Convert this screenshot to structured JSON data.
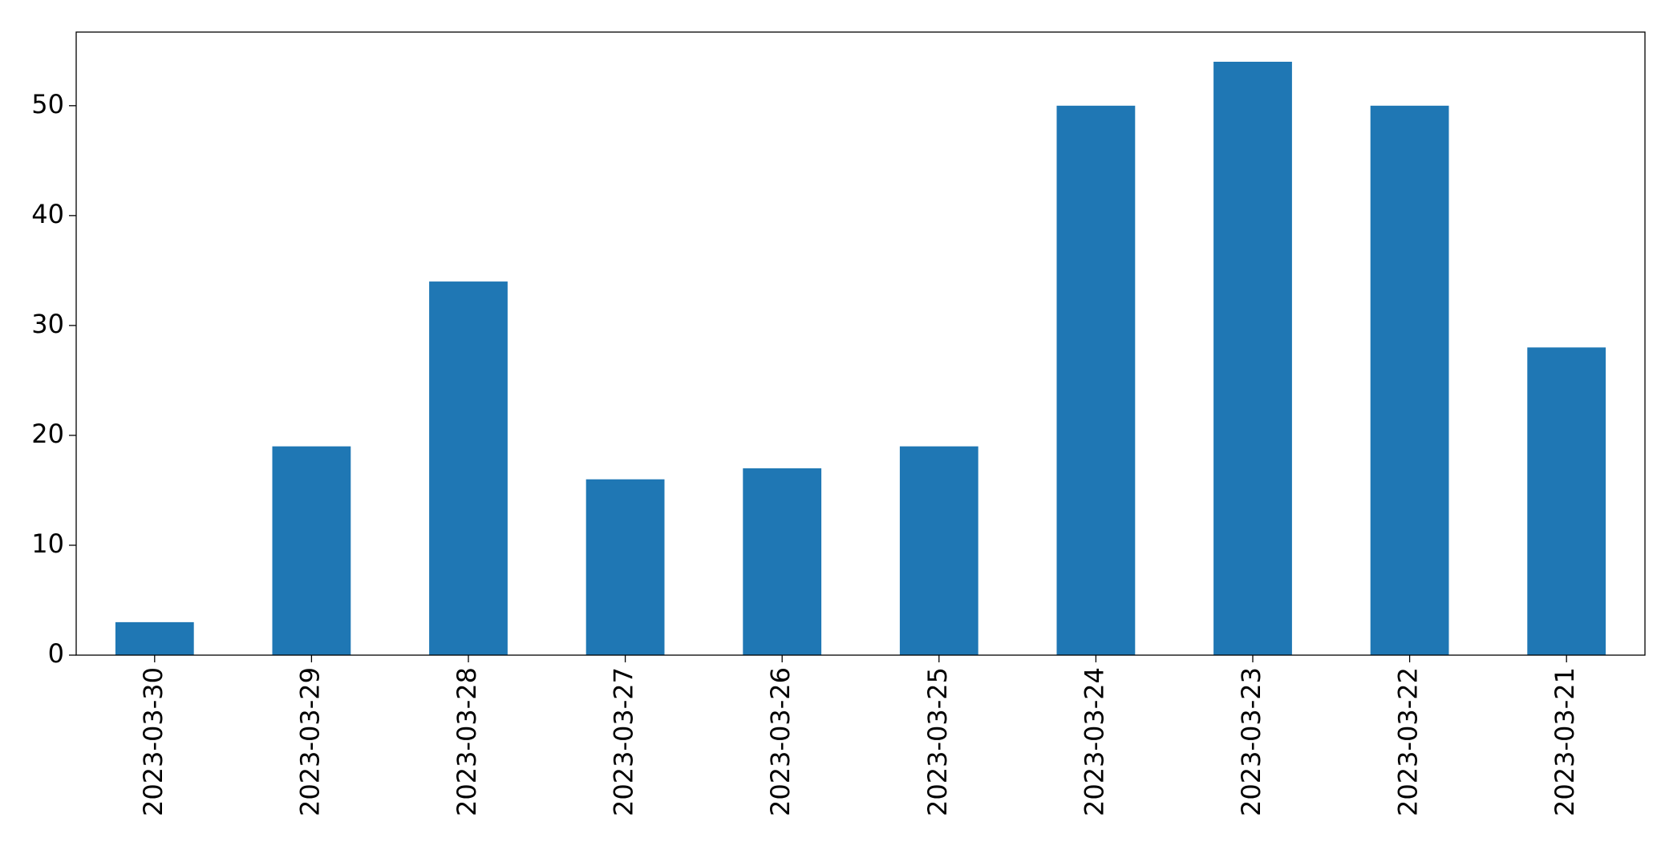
{
  "chart_data": {
    "type": "bar",
    "categories": [
      "2023-03-30",
      "2023-03-29",
      "2023-03-28",
      "2023-03-27",
      "2023-03-26",
      "2023-03-25",
      "2023-03-24",
      "2023-03-23",
      "2023-03-22",
      "2023-03-21"
    ],
    "values": [
      3,
      19,
      34,
      16,
      17,
      19,
      50,
      54,
      50,
      28
    ],
    "color": "#1f77b4",
    "ylim": [
      0,
      56.7
    ],
    "yticks": [
      0,
      10,
      20,
      30,
      40,
      50
    ],
    "grid": false
  }
}
